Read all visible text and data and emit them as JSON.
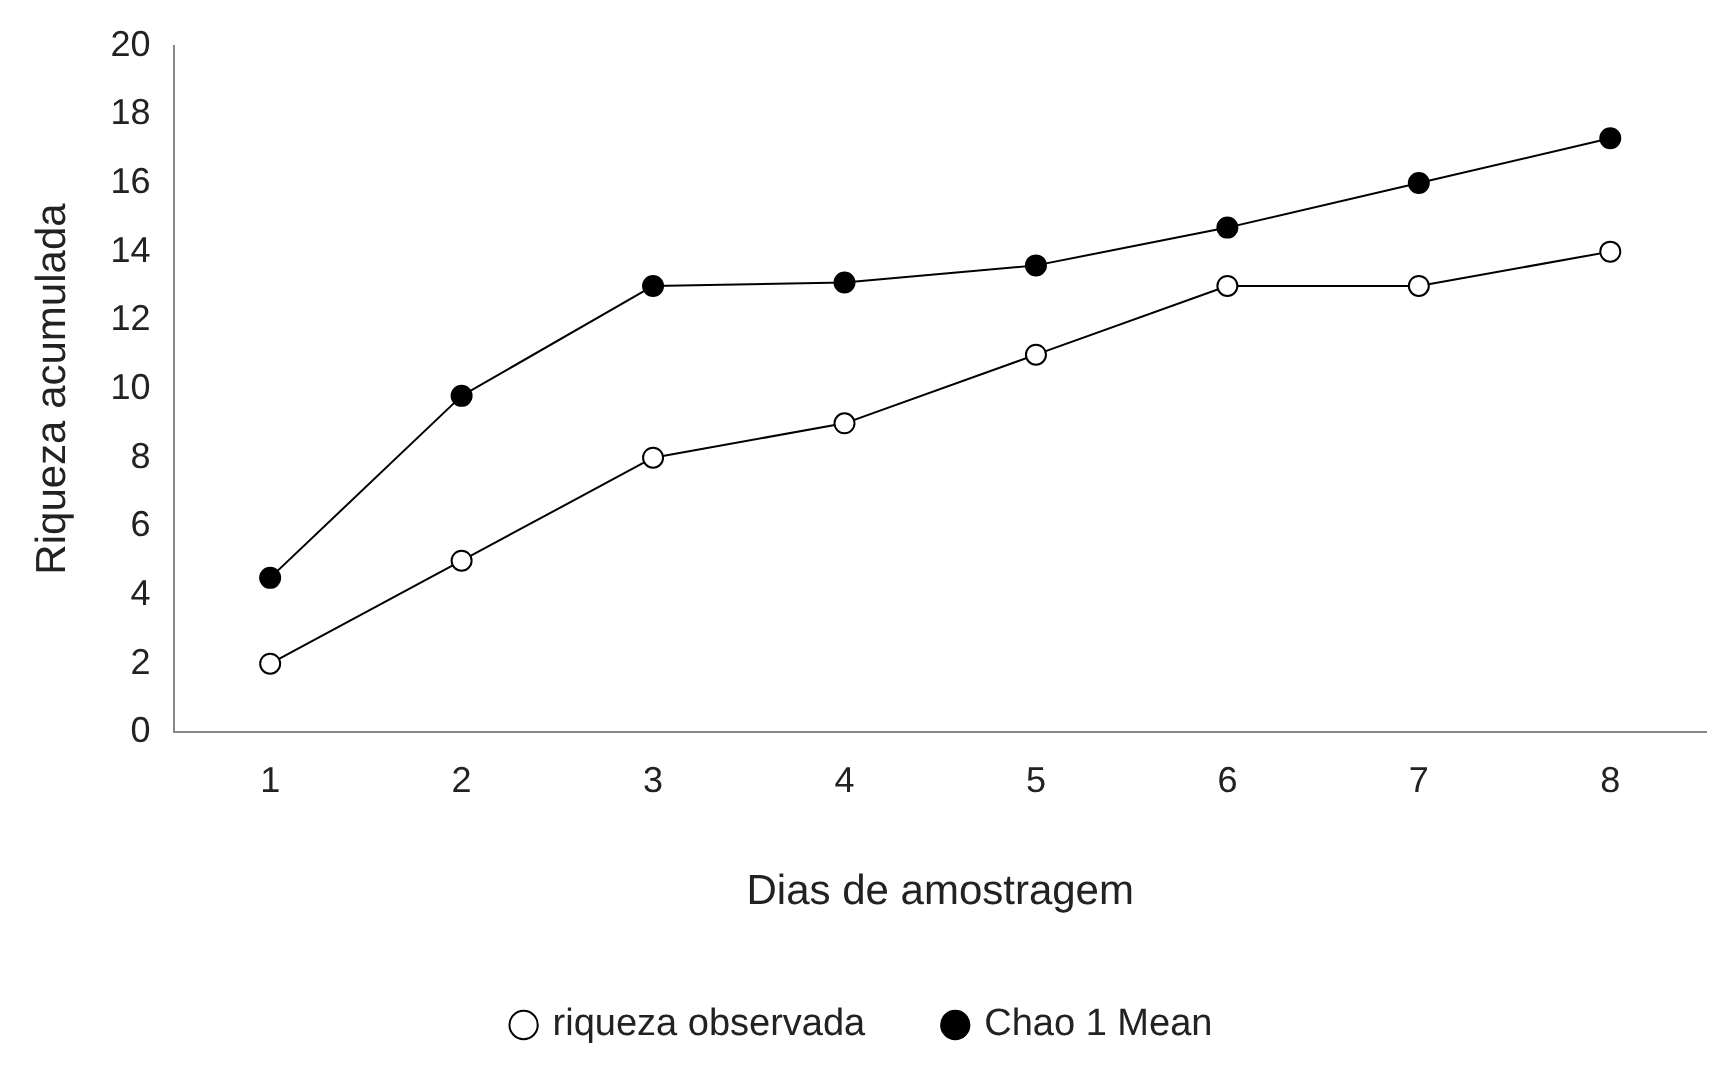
{
  "chart_data": {
    "type": "line",
    "xlabel": "Dias de amostragem",
    "ylabel": "Riqueza acumulada",
    "categories": [
      "1",
      "2",
      "3",
      "4",
      "5",
      "6",
      "7",
      "8"
    ],
    "series": [
      {
        "name": "riqueza observada",
        "color": "#000000",
        "marker": "circle",
        "values": [
          2,
          5,
          8,
          9,
          11,
          13,
          13,
          14
        ]
      },
      {
        "name": "Chao 1 Mean",
        "color": "#000000",
        "marker": "circle",
        "values": [
          4.5,
          9.8,
          13.0,
          13.1,
          13.6,
          14.7,
          16.0,
          17.3
        ]
      }
    ],
    "ylim": [
      0,
      20
    ],
    "yticks": [
      0,
      2,
      4,
      6,
      8,
      10,
      12,
      14,
      16,
      18,
      20
    ],
    "grid": false,
    "legend": "bottom",
    "line_style": "solid"
  }
}
